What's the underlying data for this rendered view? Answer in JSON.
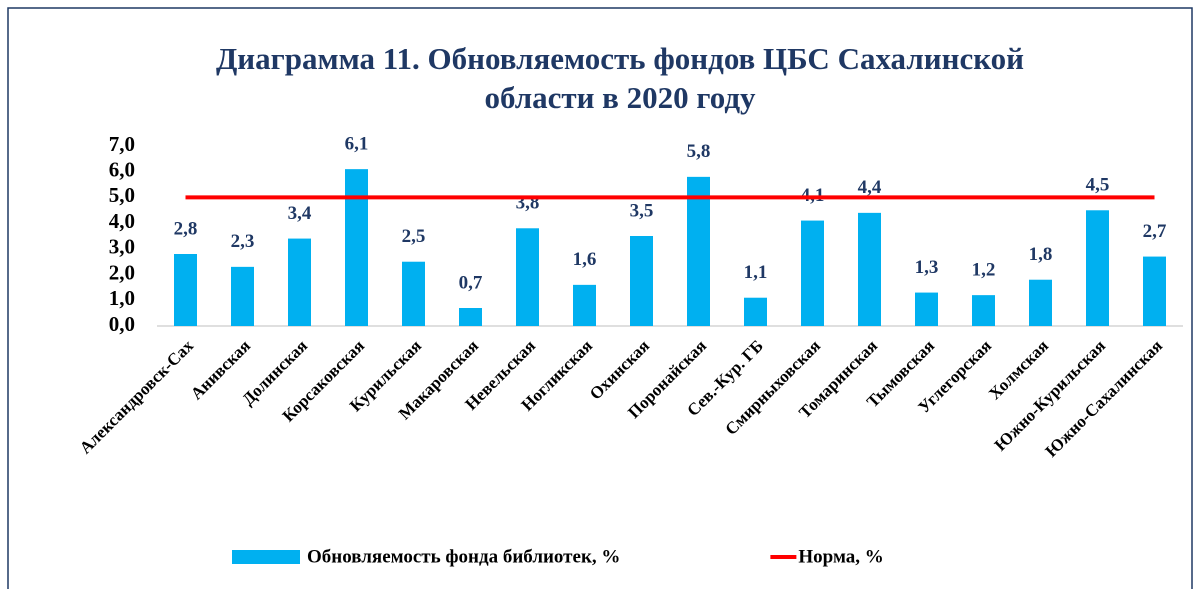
{
  "chart_data": {
    "type": "bar",
    "title": [
      "Диаграмма 11. Обновляемость фондов ЦБС Сахалинской",
      "области в 2020 году"
    ],
    "categories": [
      "Александровск-Сах",
      "Анивская",
      "Долинская",
      "Корсаковская",
      "Курильская",
      "Макаровская",
      "Невельская",
      "Ногликская",
      "Охинская",
      "Поронайская",
      "Сев.-Кур. ГБ",
      "Смирныховская",
      "Томаринская",
      "Тымовская",
      "Углегорская",
      "Холмская",
      "Южно-Курильская",
      "Южно-Сахалинская"
    ],
    "series": [
      {
        "name": "Обновляемость фонда библиотек, %",
        "color": "#00b0f0",
        "type": "bar",
        "values": [
          2.8,
          2.3,
          3.4,
          6.1,
          2.5,
          0.7,
          3.8,
          1.6,
          3.5,
          5.8,
          1.1,
          4.1,
          4.4,
          1.3,
          1.2,
          1.8,
          4.5,
          2.7
        ],
        "value_labels": [
          "2,8",
          "2,3",
          "3,4",
          "6,1",
          "2,5",
          "0,7",
          "3,8",
          "1,6",
          "3,5",
          "5,8",
          "1,1",
          "4,1",
          "4,4",
          "1,3",
          "1,2",
          "1,8",
          "4,5",
          "2,7"
        ]
      },
      {
        "name": "Норма, %",
        "color": "#ff0000",
        "type": "line",
        "values": [
          5,
          5,
          5,
          5,
          5,
          5,
          5,
          5,
          5,
          5,
          5,
          5,
          5,
          5,
          5,
          5,
          5,
          5
        ]
      }
    ],
    "ylim": [
      0,
      7
    ],
    "yticks": [
      {
        "value": 0,
        "label": "0,0"
      },
      {
        "value": 1,
        "label": "1,0"
      },
      {
        "value": 2,
        "label": "2,0"
      },
      {
        "value": 3,
        "label": "3,0"
      },
      {
        "value": 4,
        "label": "4,0"
      },
      {
        "value": 5,
        "label": "5,0"
      },
      {
        "value": 6,
        "label": "6,0"
      },
      {
        "value": 7,
        "label": "7,0"
      }
    ],
    "legend": "bottom"
  }
}
